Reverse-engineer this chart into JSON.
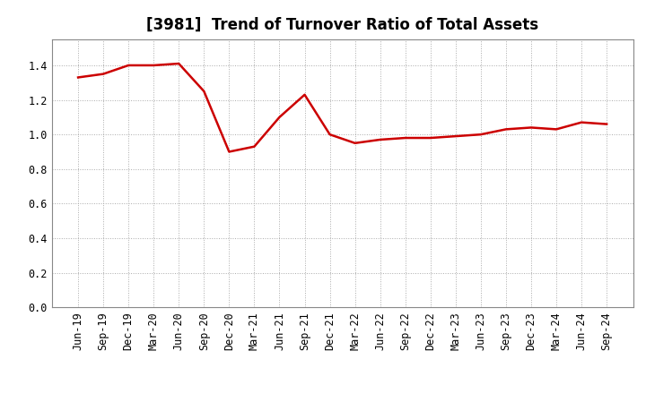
{
  "title": "[3981]  Trend of Turnover Ratio of Total Assets",
  "x_labels": [
    "Jun-19",
    "Sep-19",
    "Dec-19",
    "Mar-20",
    "Jun-20",
    "Sep-20",
    "Dec-20",
    "Mar-21",
    "Jun-21",
    "Sep-21",
    "Dec-21",
    "Mar-22",
    "Jun-22",
    "Sep-22",
    "Dec-22",
    "Mar-23",
    "Jun-23",
    "Sep-23",
    "Dec-23",
    "Mar-24",
    "Jun-24",
    "Sep-24"
  ],
  "y_values": [
    1.33,
    1.35,
    1.4,
    1.4,
    1.41,
    1.25,
    0.9,
    0.93,
    1.1,
    1.23,
    1.0,
    0.95,
    0.97,
    0.98,
    0.98,
    0.99,
    1.0,
    1.03,
    1.04,
    1.03,
    1.07,
    1.06
  ],
  "line_color": "#cc0000",
  "line_width": 1.8,
  "ylim": [
    0.0,
    1.55
  ],
  "yticks": [
    0.0,
    0.2,
    0.4,
    0.6,
    0.8,
    1.0,
    1.2,
    1.4
  ],
  "grid_color": "#aaaaaa",
  "bg_color": "#ffffff",
  "title_fontsize": 12,
  "tick_fontsize": 8.5
}
